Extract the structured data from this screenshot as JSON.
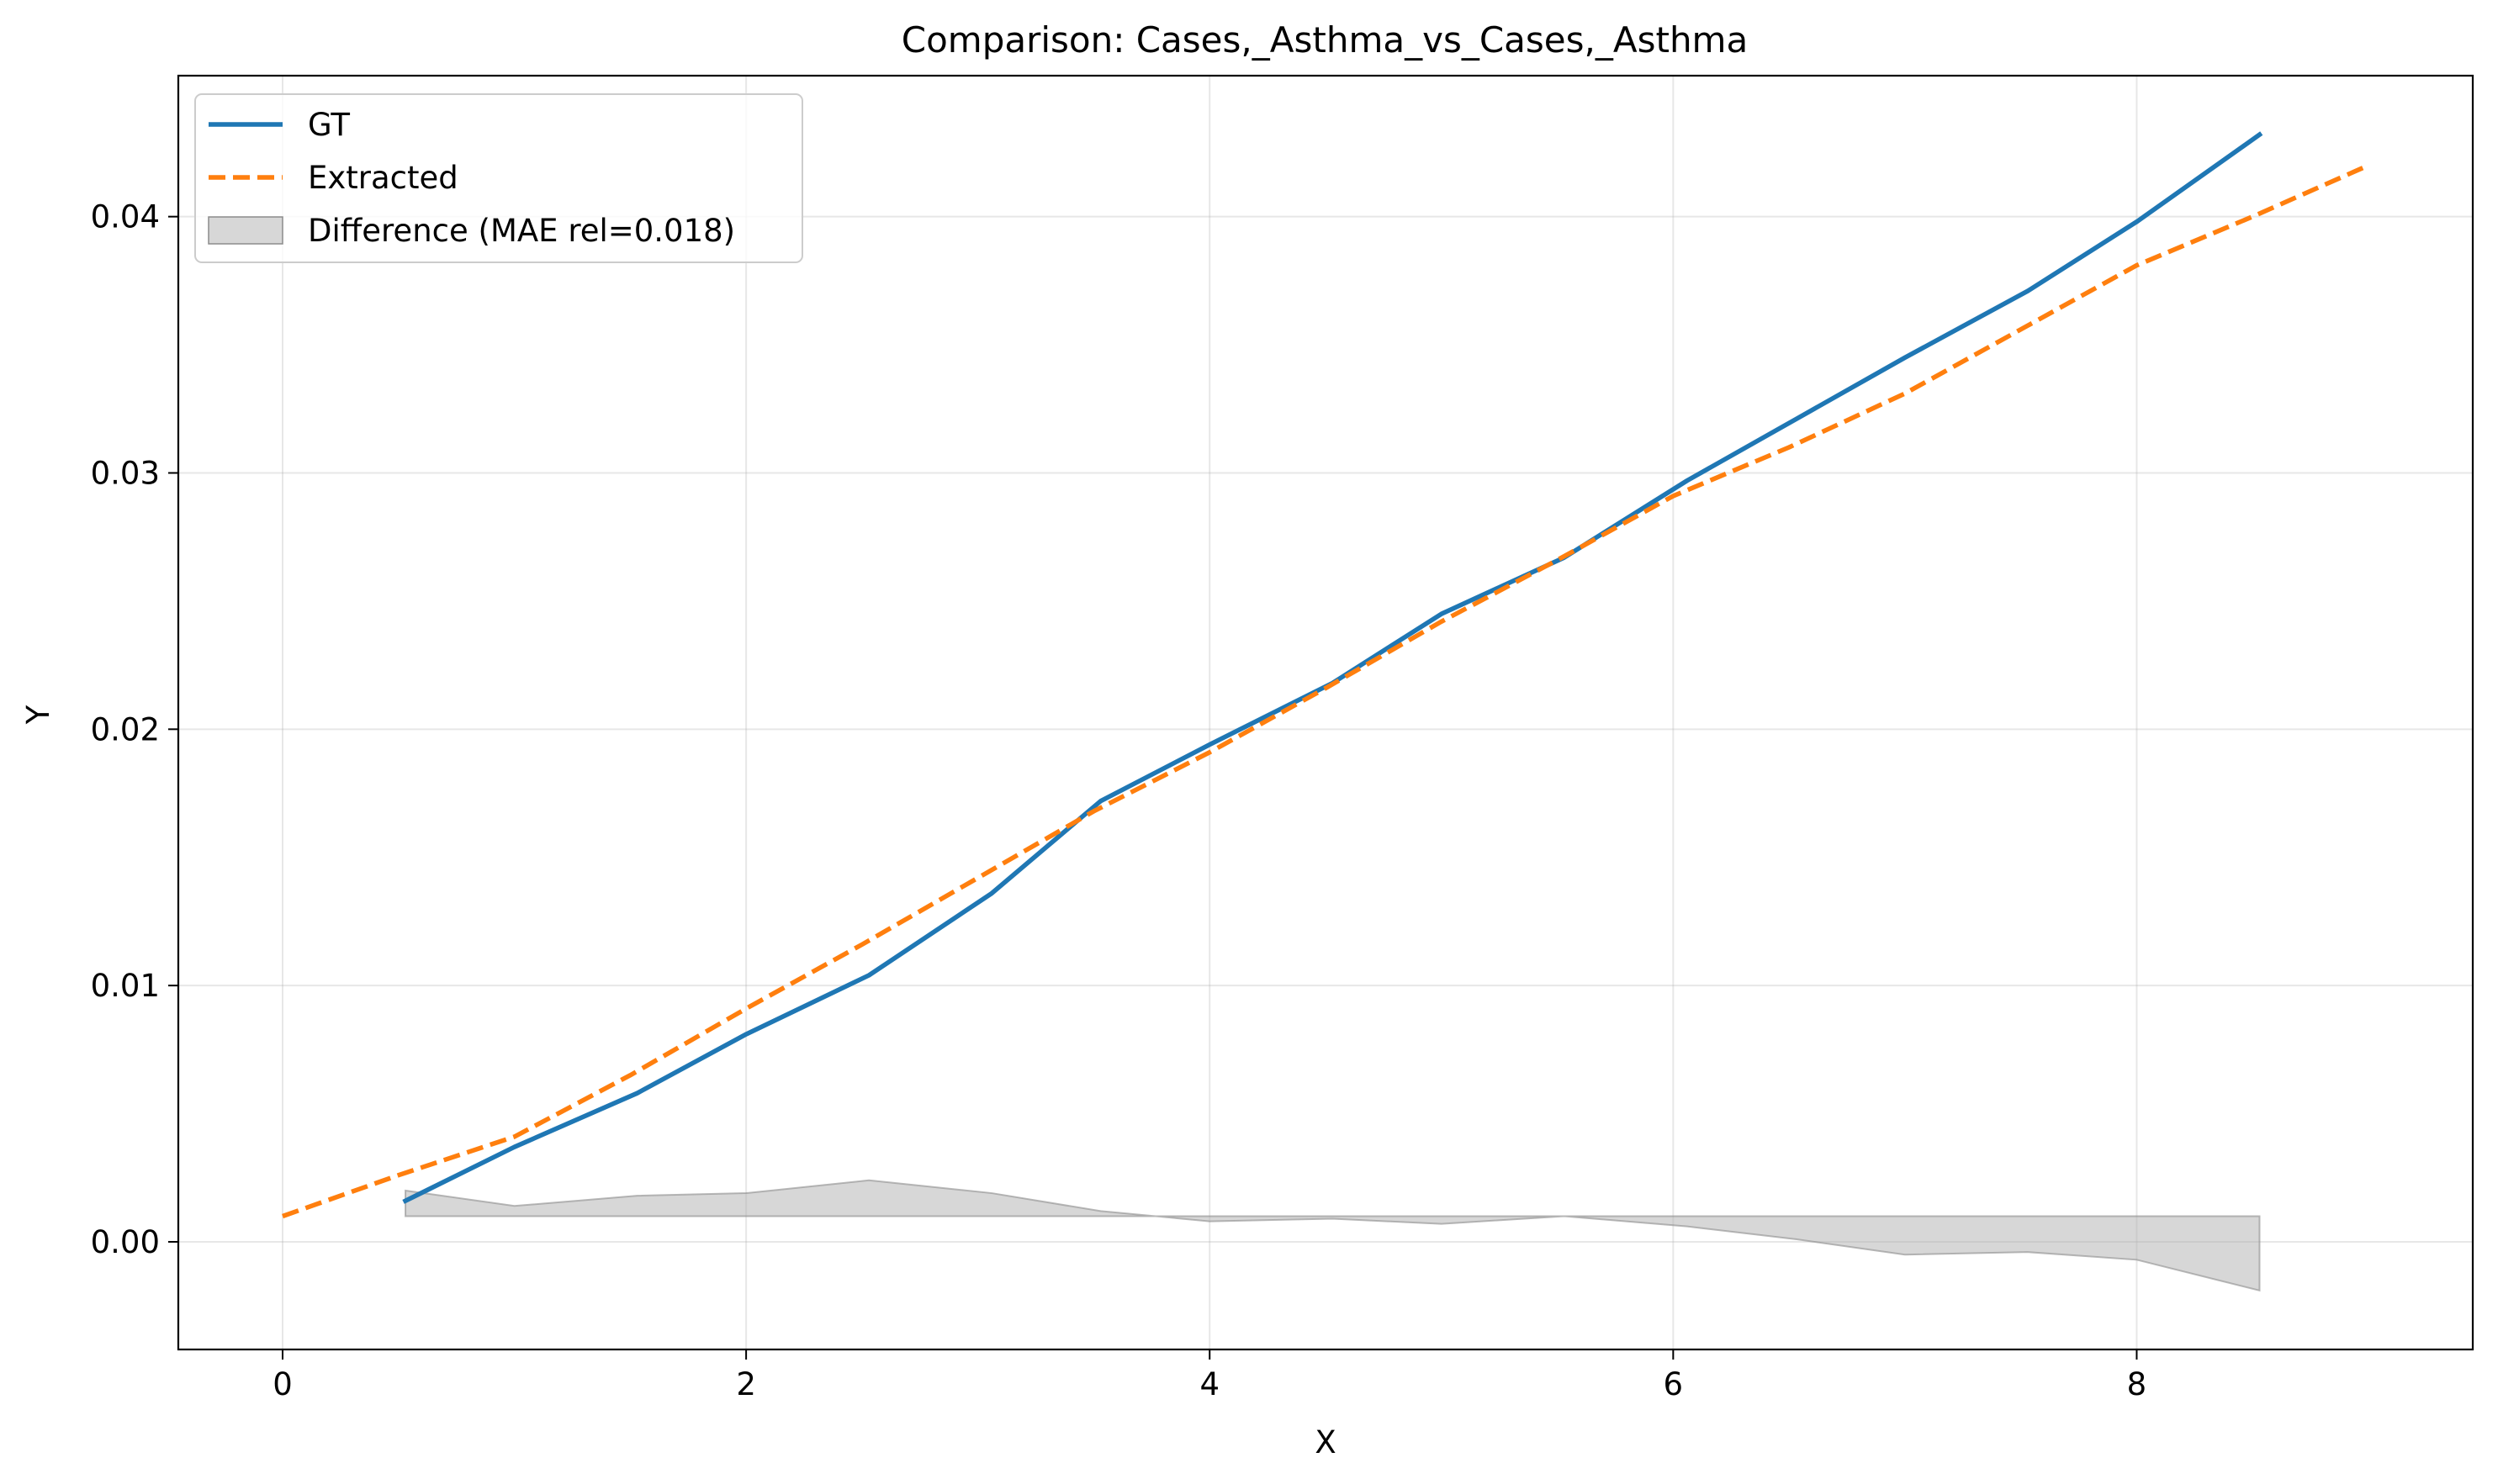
{
  "chart_data": {
    "type": "line",
    "title": "Comparison: Cases,_Asthma_vs_Cases,_Asthma",
    "xlabel": "X",
    "ylabel": "Y",
    "xlim": [
      -0.45,
      9.45
    ],
    "ylim": [
      -0.0042,
      0.0455
    ],
    "xticks": [
      0,
      2,
      4,
      6,
      8
    ],
    "xtick_labels": [
      "0",
      "2",
      "4",
      "6",
      "8"
    ],
    "yticks": [
      0.0,
      0.01,
      0.02,
      0.03,
      0.04
    ],
    "ytick_labels": [
      "0.00",
      "0.01",
      "0.02",
      "0.03",
      "0.04"
    ],
    "grid": true,
    "legend_position": "top-left",
    "series": [
      {
        "name": "GT",
        "style": "solid",
        "color": "#1f77b4",
        "x": [
          0.53,
          1.0,
          1.53,
          2.0,
          2.53,
          3.06,
          3.53,
          4.0,
          4.53,
          5.0,
          5.53,
          6.06,
          6.53,
          7.0,
          7.53,
          8.0,
          8.53
        ],
        "y": [
          0.0016,
          0.0037,
          0.0058,
          0.0081,
          0.0104,
          0.0136,
          0.0172,
          0.0194,
          0.0218,
          0.0245,
          0.0267,
          0.0297,
          0.0321,
          0.0345,
          0.0371,
          0.0398,
          0.0432
        ]
      },
      {
        "name": "Extracted",
        "style": "dashed",
        "color": "#ff7f0e",
        "x": [
          0.0,
          0.5,
          1.0,
          1.5,
          2.0,
          2.5,
          3.0,
          3.5,
          4.0,
          4.5,
          5.0,
          5.5,
          6.0,
          6.5,
          7.0,
          7.5,
          8.0,
          8.5,
          9.0
        ],
        "y": [
          0.001,
          0.0026,
          0.0041,
          0.0065,
          0.0091,
          0.0116,
          0.0142,
          0.0168,
          0.0191,
          0.0216,
          0.0242,
          0.0266,
          0.0291,
          0.031,
          0.0331,
          0.0356,
          0.0381,
          0.04,
          0.042
        ]
      },
      {
        "name": "Difference (MAE rel=0.018)",
        "style": "fill",
        "color": "#b0b0b0",
        "baseline": 0.001,
        "x": [
          0.53,
          1.0,
          1.53,
          2.0,
          2.53,
          3.06,
          3.53,
          4.0,
          4.53,
          5.0,
          5.53,
          6.06,
          6.53,
          7.0,
          7.53,
          8.0,
          8.53
        ],
        "y": [
          0.002,
          0.0014,
          0.0018,
          0.0019,
          0.0024,
          0.0019,
          0.0012,
          0.0008,
          0.0009,
          0.0007,
          0.001,
          0.0006,
          0.0001,
          -0.0005,
          -0.0004,
          -0.0007,
          -0.0019
        ]
      }
    ]
  }
}
